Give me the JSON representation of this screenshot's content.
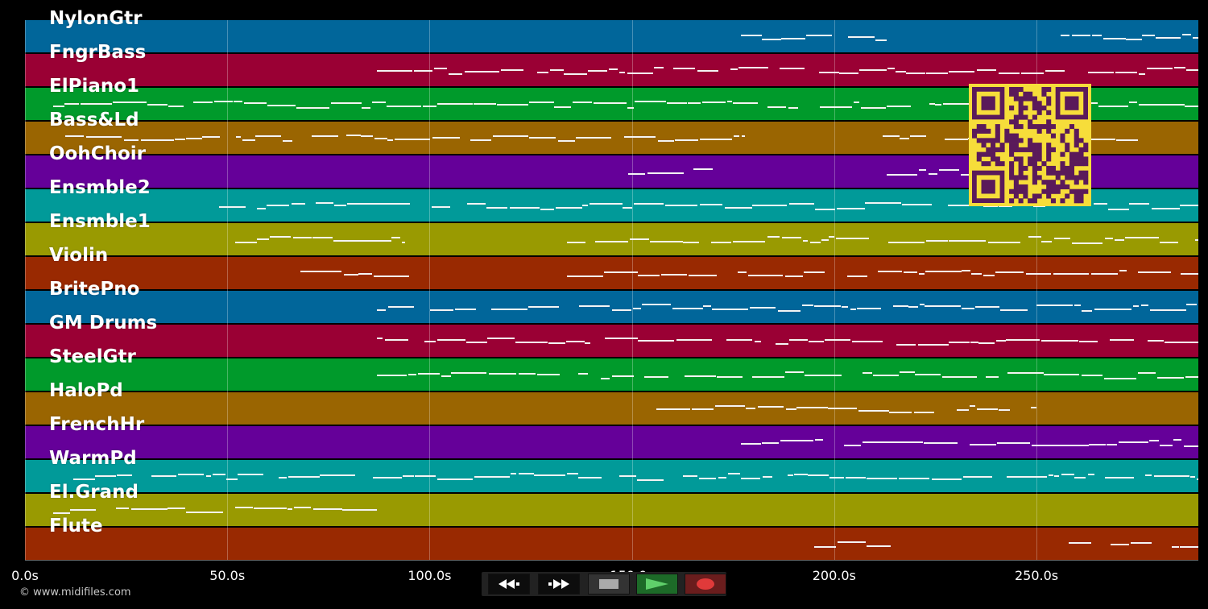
{
  "tracks": [
    {
      "label": "NylonGtr",
      "color": "#01669a"
    },
    {
      "label": "FngrBass",
      "color": "#9a0034"
    },
    {
      "label": "ElPiano1",
      "color": "#009a2b"
    },
    {
      "label": "Bass&Ld",
      "color": "#9a6501"
    },
    {
      "label": "OohChoir",
      "color": "#650099"
    },
    {
      "label": "Ensmble2",
      "color": "#019a99"
    },
    {
      "label": "Ensmble1",
      "color": "#999a01"
    },
    {
      "label": "Violin",
      "color": "#992901"
    },
    {
      "label": "BritePno",
      "color": "#01669a"
    },
    {
      "label": "GM Drums",
      "color": "#9a0034"
    },
    {
      "label": "SteelGtr",
      "color": "#009a2b"
    },
    {
      "label": "HaloPd",
      "color": "#9a6501"
    },
    {
      "label": "FrenchHr",
      "color": "#650099"
    },
    {
      "label": "WarmPd",
      "color": "#019a99"
    },
    {
      "label": "El.Grand",
      "color": "#999a01"
    },
    {
      "label": "Flute",
      "color": "#992901"
    }
  ],
  "timeline": {
    "max_seconds": 290,
    "ticks": [
      {
        "value": 0,
        "label": "0.0s"
      },
      {
        "value": 50,
        "label": "50.0s"
      },
      {
        "value": 100,
        "label": "100.0s"
      },
      {
        "value": 150,
        "label": "150.0s"
      },
      {
        "value": 200,
        "label": "200.0s"
      },
      {
        "value": 250,
        "label": "250.0s"
      }
    ]
  },
  "note_activity_seconds": [
    [
      [
        177,
        214
      ],
      [
        256,
        290
      ]
    ],
    [
      [
        87,
        290
      ]
    ],
    [
      [
        7,
        290
      ]
    ],
    [
      [
        10,
        178
      ],
      [
        212,
        275
      ]
    ],
    [
      [
        149,
        170
      ],
      [
        213,
        235
      ]
    ],
    [
      [
        48,
        290
      ]
    ],
    [
      [
        52,
        94
      ],
      [
        134,
        290
      ]
    ],
    [
      [
        68,
        96
      ],
      [
        134,
        290
      ]
    ],
    [
      [
        87,
        290
      ]
    ],
    [
      [
        87,
        290
      ]
    ],
    [
      [
        87,
        290
      ]
    ],
    [
      [
        156,
        250
      ]
    ],
    [
      [
        177,
        290
      ]
    ],
    [
      [
        12,
        290
      ]
    ],
    [
      [
        7,
        87
      ]
    ],
    [
      [
        195,
        214
      ],
      [
        258,
        290
      ]
    ]
  ],
  "transport": {
    "rewind": "rewind-icon",
    "fast_forward": "fast-forward-icon",
    "stop": "stop-icon",
    "play": "play-icon",
    "record": "record-icon"
  },
  "colors": {
    "play_active": "#1d6a28",
    "record_bg": "#6a1d1d",
    "qr_bg": "#f6dd3a",
    "qr_fg": "#5a1a5a"
  },
  "footer": {
    "copyright": "© www.midifiles.com"
  }
}
